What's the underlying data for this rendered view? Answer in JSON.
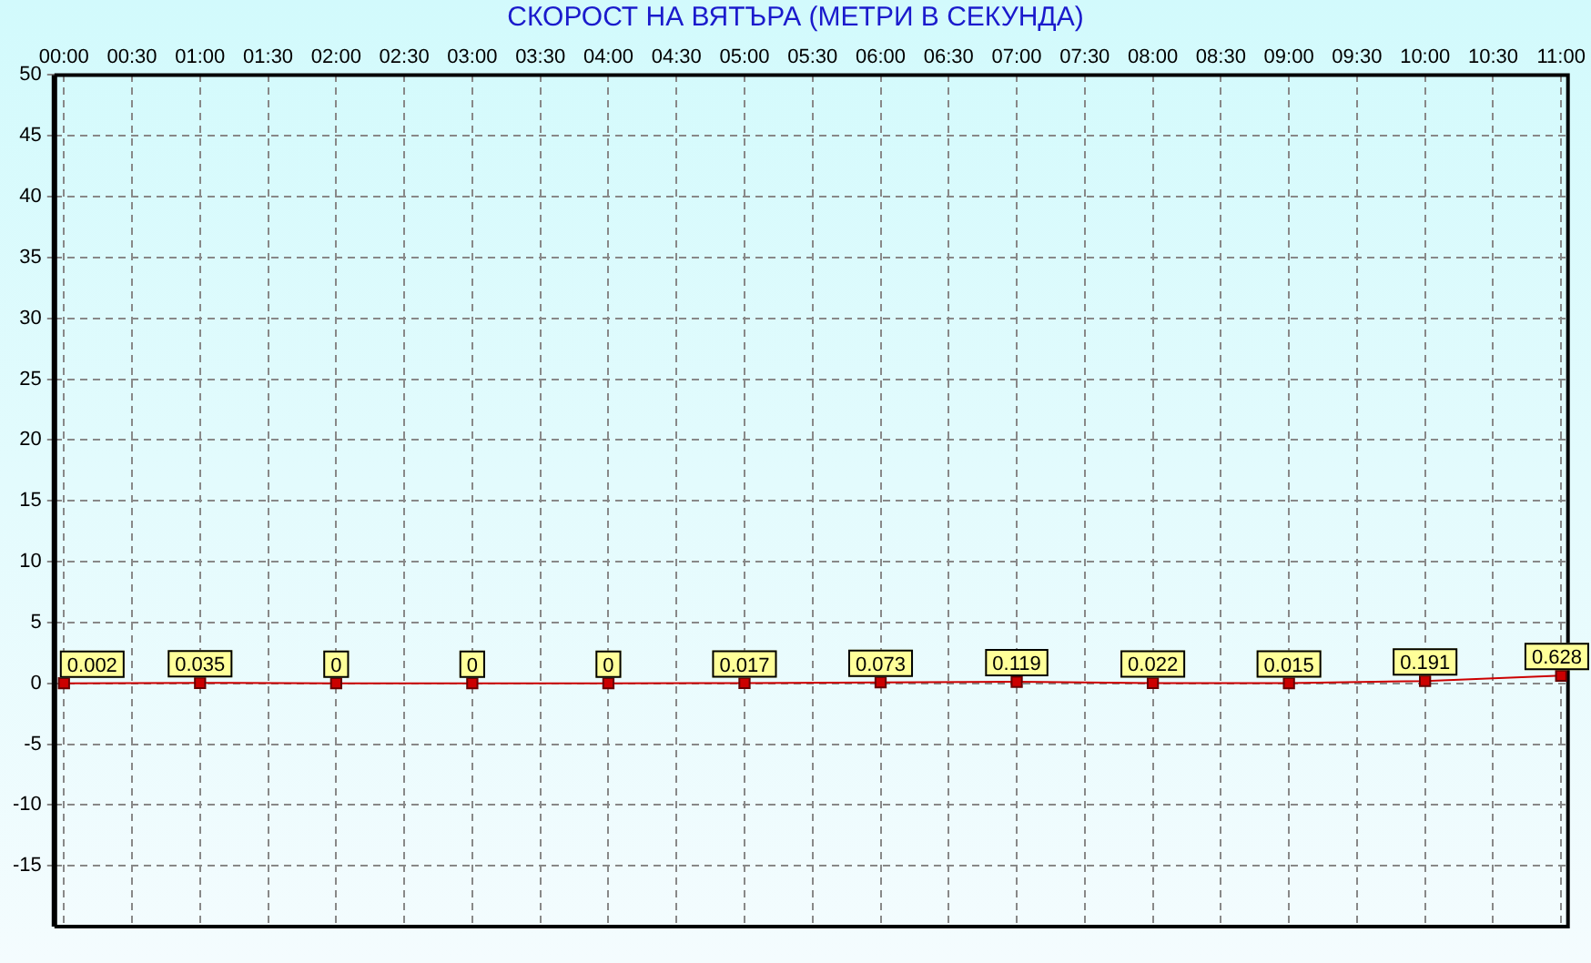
{
  "chart_data": {
    "type": "line",
    "title": "СКОРОСТ НА ВЯТЪРА (МЕТРИ В СЕКУНДА)",
    "x": [
      0,
      1,
      2,
      3,
      4,
      5,
      6,
      7,
      8,
      9,
      10,
      11
    ],
    "series": [
      {
        "color": "#cc0000",
        "values": [
          0.002,
          0.035,
          0,
          0,
          0,
          0.017,
          0.073,
          0.119,
          0.022,
          0.015,
          0.191,
          0.628
        ]
      }
    ],
    "xlim": [
      -0.07,
      11.05
    ],
    "xticks": [
      {
        "value": 0,
        "label": "00:00"
      },
      {
        "value": 0.5,
        "label": "00:30"
      },
      {
        "value": 1,
        "label": "01:00"
      },
      {
        "value": 1.5,
        "label": "01:30"
      },
      {
        "value": 2,
        "label": "02:00"
      },
      {
        "value": 2.5,
        "label": "02:30"
      },
      {
        "value": 3,
        "label": "03:00"
      },
      {
        "value": 3.5,
        "label": "03:30"
      },
      {
        "value": 4,
        "label": "04:00"
      },
      {
        "value": 4.5,
        "label": "04:30"
      },
      {
        "value": 5,
        "label": "05:00"
      },
      {
        "value": 5.5,
        "label": "05:30"
      },
      {
        "value": 6,
        "label": "06:00"
      },
      {
        "value": 6.5,
        "label": "06:30"
      },
      {
        "value": 7,
        "label": "07:00"
      },
      {
        "value": 7.5,
        "label": "07:30"
      },
      {
        "value": 8,
        "label": "08:00"
      },
      {
        "value": 8.5,
        "label": "08:30"
      },
      {
        "value": 9,
        "label": "09:00"
      },
      {
        "value": 9.5,
        "label": "09:30"
      },
      {
        "value": 10,
        "label": "10:00"
      },
      {
        "value": 10.5,
        "label": "10:30"
      },
      {
        "value": 11,
        "label": "11:00"
      }
    ],
    "ylim": [
      -20,
      50
    ],
    "yticks": [
      -15,
      -10,
      -5,
      0,
      5,
      10,
      15,
      20,
      25,
      30,
      35,
      40,
      45,
      50
    ],
    "grid": true,
    "legend": false,
    "marker": "square",
    "line_style": "solid",
    "data_labels": true
  }
}
